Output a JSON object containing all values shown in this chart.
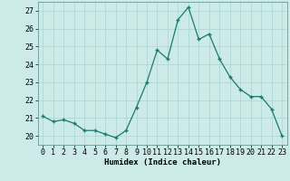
{
  "x": [
    0,
    1,
    2,
    3,
    4,
    5,
    6,
    7,
    8,
    9,
    10,
    11,
    12,
    13,
    14,
    15,
    16,
    17,
    18,
    19,
    20,
    21,
    22,
    23
  ],
  "y": [
    21.1,
    20.8,
    20.9,
    20.7,
    20.3,
    20.3,
    20.1,
    19.9,
    20.3,
    21.6,
    23.0,
    24.8,
    24.3,
    26.5,
    27.2,
    25.4,
    25.7,
    24.3,
    23.3,
    22.6,
    22.2,
    22.2,
    21.5,
    20.0
  ],
  "xlabel": "Humidex (Indice chaleur)",
  "ylim": [
    19.5,
    27.5
  ],
  "xlim": [
    -0.5,
    23.5
  ],
  "yticks": [
    20,
    21,
    22,
    23,
    24,
    25,
    26,
    27
  ],
  "xticks": [
    0,
    1,
    2,
    3,
    4,
    5,
    6,
    7,
    8,
    9,
    10,
    11,
    12,
    13,
    14,
    15,
    16,
    17,
    18,
    19,
    20,
    21,
    22,
    23
  ],
  "line_color": "#1a7a6e",
  "marker_color": "#1a7a6e",
  "bg_color": "#cceae8",
  "grid_color": "#aad4d0",
  "label_fontsize": 6.5,
  "tick_fontsize": 6
}
